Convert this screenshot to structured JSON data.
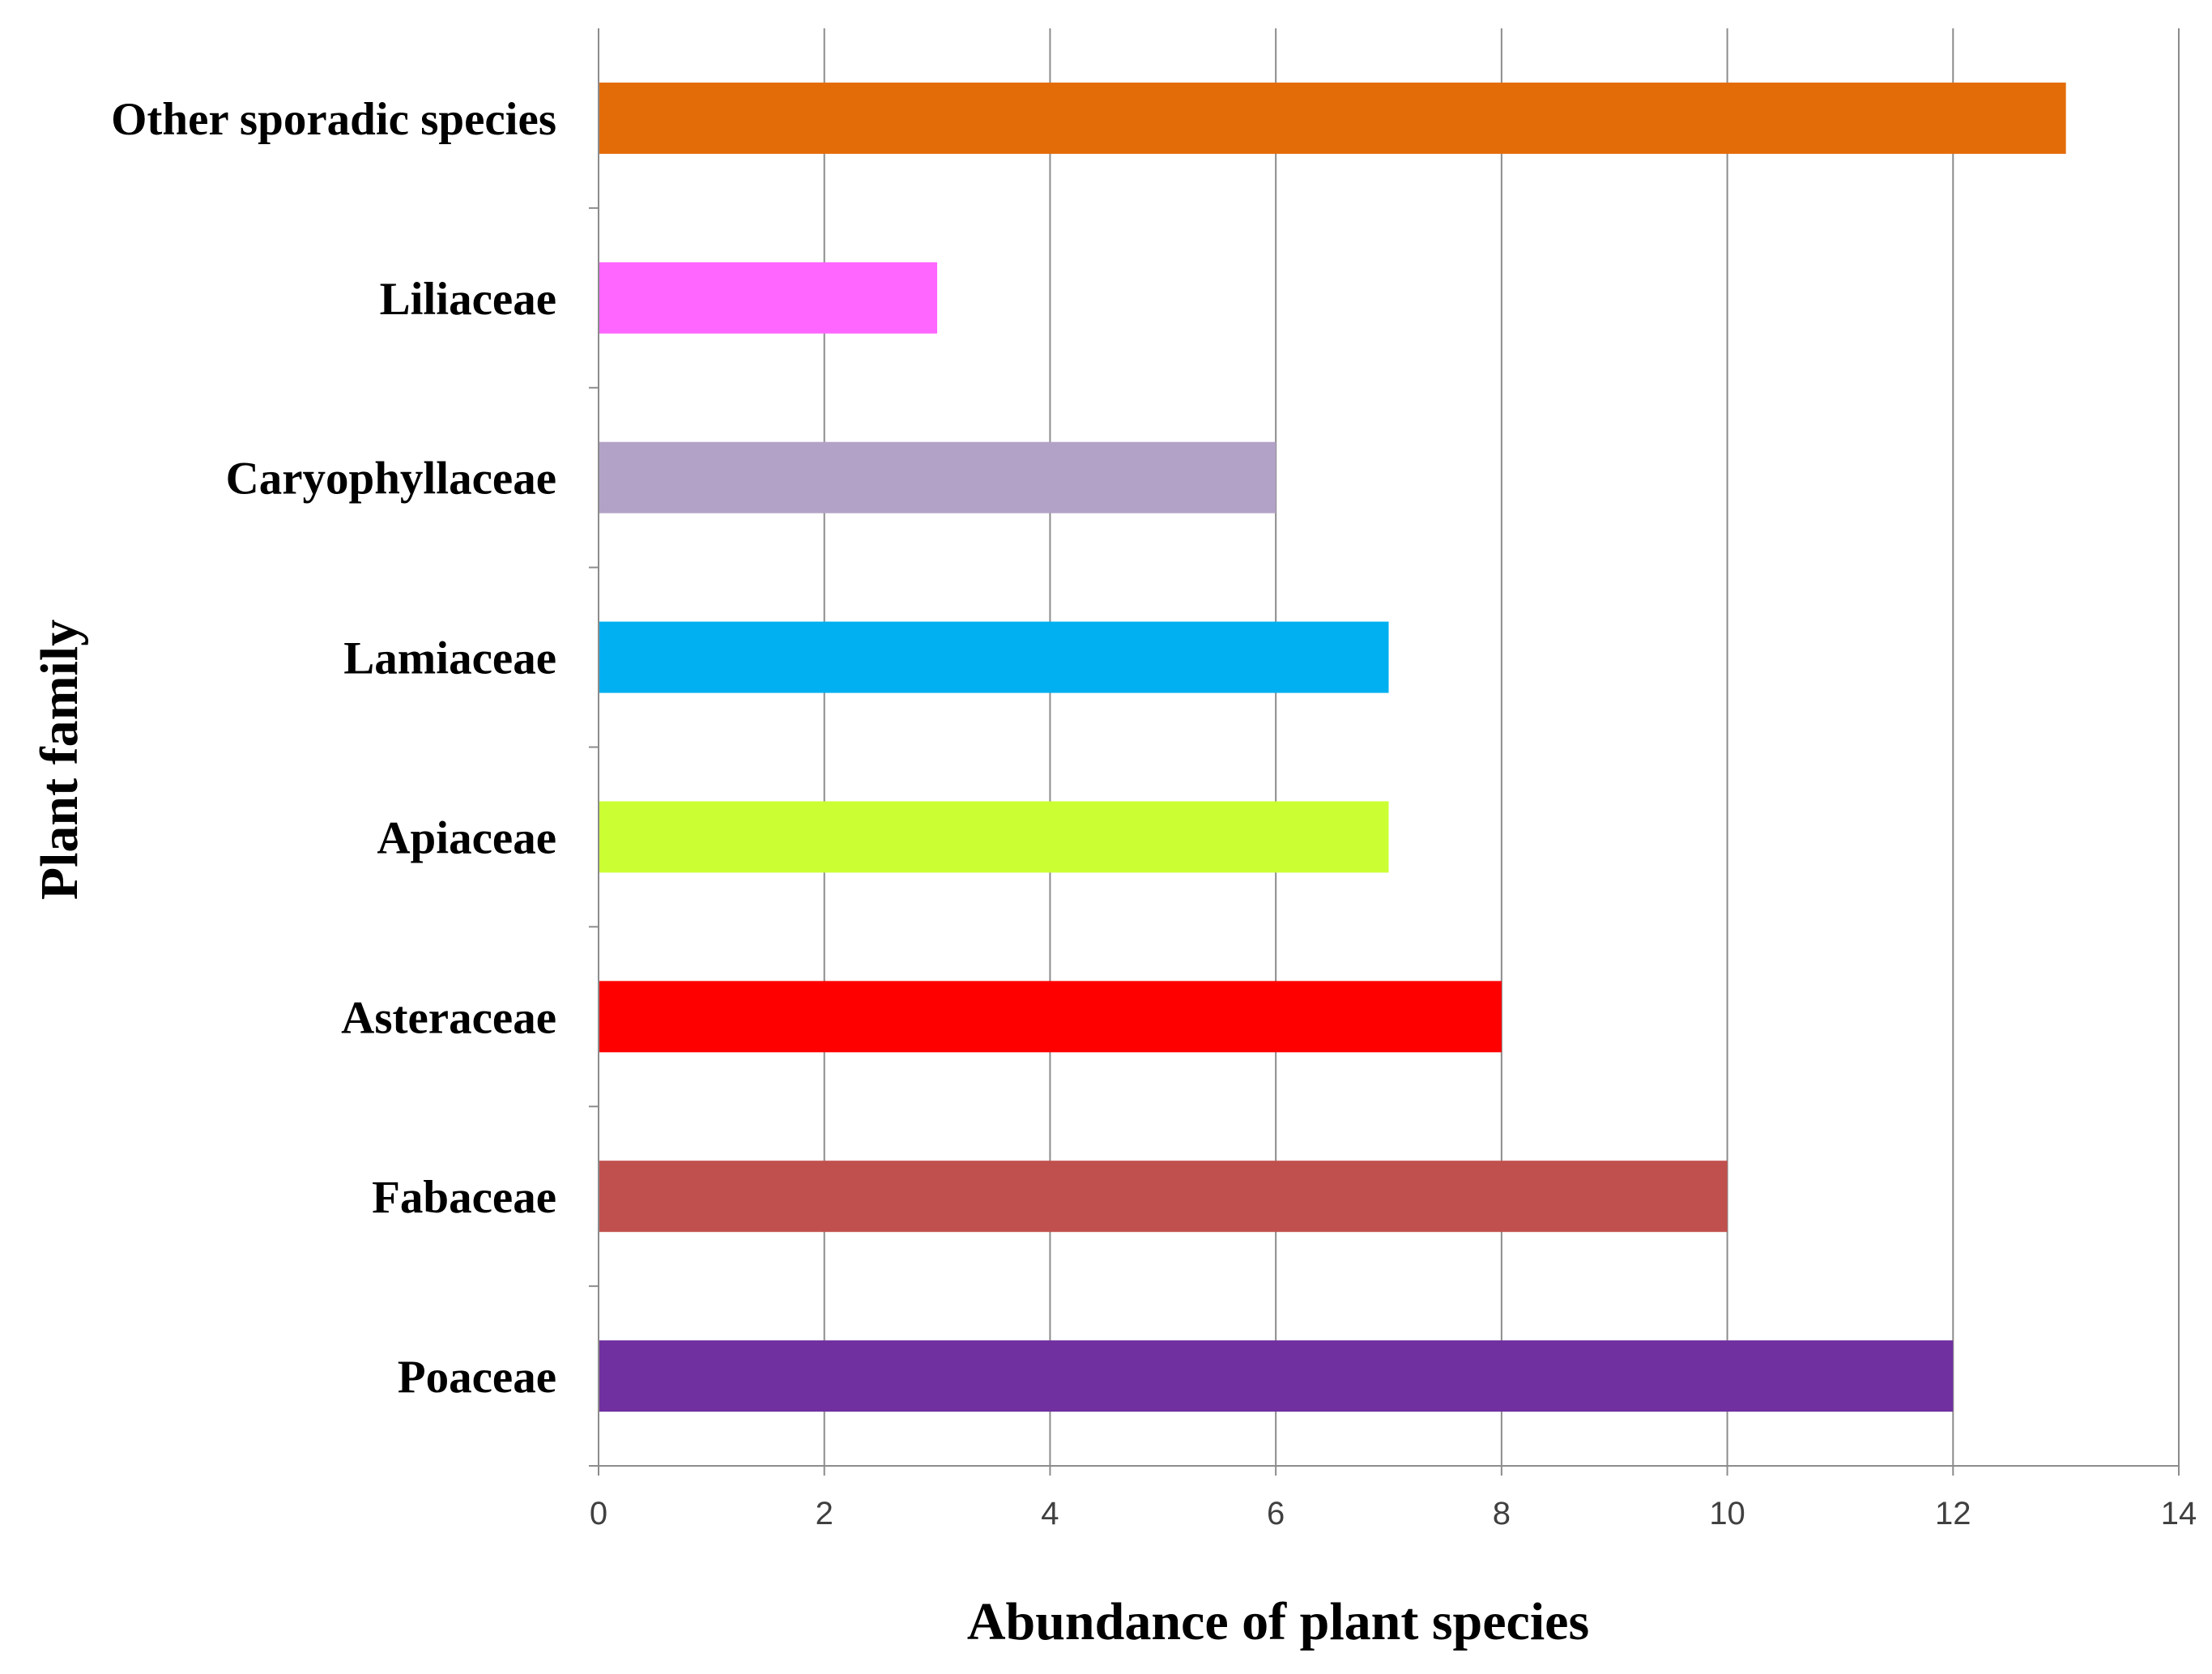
{
  "chart_data": {
    "type": "bar",
    "orientation": "horizontal",
    "title": "",
    "xlabel": "Abundance of plant species",
    "ylabel": "Plant family",
    "xlim": [
      0,
      14
    ],
    "x_ticks": [
      0,
      2,
      4,
      6,
      8,
      10,
      12,
      14
    ],
    "grid": true,
    "legend": "none",
    "categories": [
      "Poaceae",
      "Fabaceae",
      "Asteraceae",
      "Apiaceae",
      "Lamiaceae",
      "Caryophyllaceae",
      "Liliaceae",
      "Other sporadic species"
    ],
    "values": [
      12,
      10,
      8,
      7,
      7,
      6,
      3,
      13
    ],
    "colors": [
      "#7030a0",
      "#c0504d",
      "#ff0000",
      "#ccff33",
      "#00b0f0",
      "#b3a2c7",
      "#ff66ff",
      "#e36c09"
    ]
  }
}
